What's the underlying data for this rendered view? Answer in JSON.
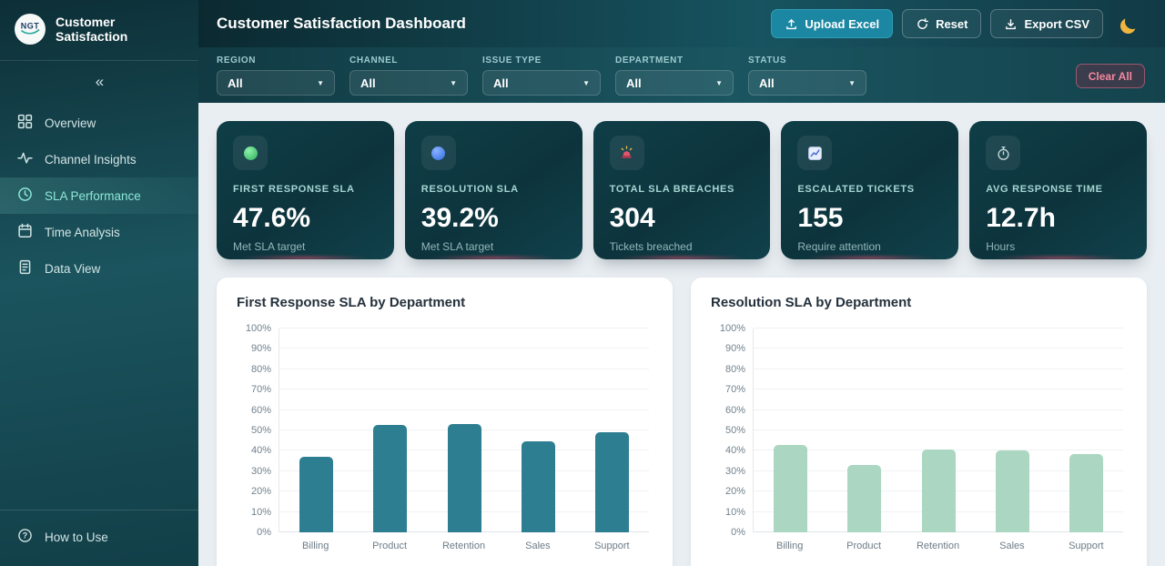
{
  "brand": {
    "logo_text": "NGT",
    "title": "Customer Satisfaction"
  },
  "sidebar": {
    "collapse_icon": "«",
    "items": [
      {
        "label": "Overview",
        "icon": "grid-icon",
        "active": false
      },
      {
        "label": "Channel Insights",
        "icon": "activity-icon",
        "active": false
      },
      {
        "label": "SLA Performance",
        "icon": "clock-icon",
        "active": true
      },
      {
        "label": "Time Analysis",
        "icon": "calendar-icon",
        "active": false
      },
      {
        "label": "Data View",
        "icon": "document-icon",
        "active": false
      }
    ],
    "footer_item": {
      "label": "How to Use",
      "icon": "help-icon"
    }
  },
  "header": {
    "title": "Customer Satisfaction Dashboard",
    "buttons": [
      {
        "label": "Upload Excel",
        "icon": "upload-icon",
        "style": "primary"
      },
      {
        "label": "Reset",
        "icon": "reset-icon",
        "style": "ghost"
      },
      {
        "label": "Export CSV",
        "icon": "download-icon",
        "style": "ghost"
      }
    ],
    "theme_toggle_icon": "moon-icon",
    "moon_color": "#f0b440"
  },
  "filters": {
    "items": [
      {
        "label": "REGION",
        "value": "All"
      },
      {
        "label": "CHANNEL",
        "value": "All"
      },
      {
        "label": "ISSUE TYPE",
        "value": "All"
      },
      {
        "label": "DEPARTMENT",
        "value": "All"
      },
      {
        "label": "STATUS",
        "value": "All"
      }
    ],
    "clear_label": "Clear All",
    "clear_color": "#f4879f"
  },
  "kpis": [
    {
      "title": "FIRST RESPONSE SLA",
      "value": "47.6%",
      "subtitle": "Met SLA target",
      "icon": "green-dot-icon",
      "icon_color": "#3ecf6e"
    },
    {
      "title": "RESOLUTION SLA",
      "value": "39.2%",
      "subtitle": "Met SLA target",
      "icon": "blue-dot-icon",
      "icon_color": "#3b7ef0"
    },
    {
      "title": "TOTAL SLA BREACHES",
      "value": "304",
      "subtitle": "Tickets breached",
      "icon": "siren-icon",
      "icon_color": "#e3556b"
    },
    {
      "title": "ESCALATED TICKETS",
      "value": "155",
      "subtitle": "Require attention",
      "icon": "trend-chart-icon",
      "icon_color": "#4f74d8"
    },
    {
      "title": "AVG RESPONSE TIME",
      "value": "12.7h",
      "subtitle": "Hours",
      "icon": "stopwatch-icon",
      "icon_color": "#c3d6d9"
    }
  ],
  "chart_data": [
    {
      "type": "bar",
      "title": "First Response SLA by Department",
      "categories": [
        "Billing",
        "Product",
        "Retention",
        "Sales",
        "Support"
      ],
      "values": [
        37,
        52.5,
        53,
        44.5,
        49
      ],
      "unit": "%",
      "xlabel": "",
      "ylabel": "",
      "ylim": [
        0,
        100
      ],
      "ytick_step": 10,
      "ytick_labels": [
        "0%",
        "10%",
        "20%",
        "30%",
        "40%",
        "50%",
        "60%",
        "70%",
        "80%",
        "90%",
        "100%"
      ],
      "bar_color": "#2e7e92",
      "grid": true,
      "legend": "none"
    },
    {
      "type": "bar",
      "title": "Resolution SLA by Department",
      "categories": [
        "Billing",
        "Product",
        "Retention",
        "Sales",
        "Support"
      ],
      "values": [
        43,
        33,
        40.5,
        40,
        38.5
      ],
      "unit": "%",
      "xlabel": "",
      "ylabel": "",
      "ylim": [
        0,
        100
      ],
      "ytick_step": 10,
      "ytick_labels": [
        "0%",
        "10%",
        "20%",
        "30%",
        "40%",
        "50%",
        "60%",
        "70%",
        "80%",
        "90%",
        "100%"
      ],
      "bar_color": "#abd7c2",
      "grid": true,
      "legend": "none"
    }
  ],
  "theme": {
    "sidebar_bg": "#144751",
    "header_bg": "#123d47",
    "accent_teal": "#1c87a3",
    "active_nav_text": "#8ce8da",
    "main_bg": "#e9eef2",
    "card_bg": "#0e3942",
    "card_glow": "#dd4e6c"
  }
}
